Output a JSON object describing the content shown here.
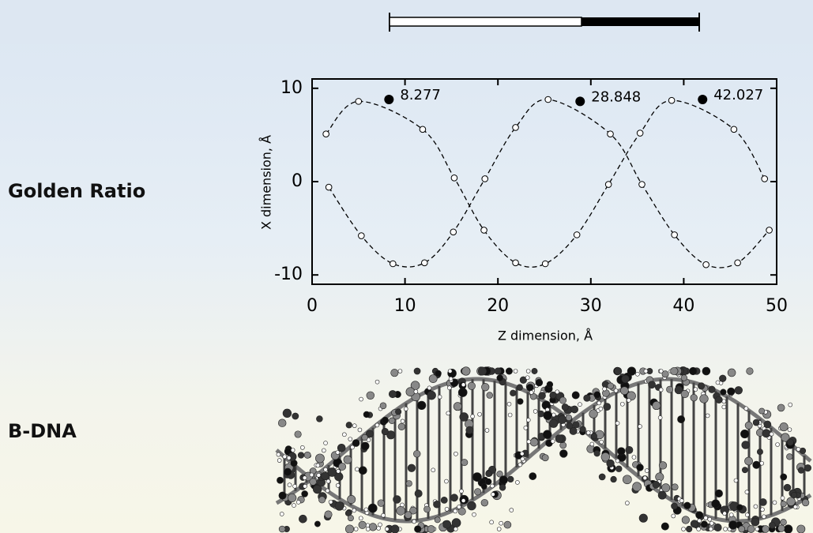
{
  "side_labels": [
    "Golden Ratio",
    "B-DNA"
  ],
  "chart_data": {
    "type": "line",
    "x_label": "Z dimension, Å",
    "y_label": "X dimension, Å",
    "xlim": [
      0,
      50
    ],
    "ylim": [
      -11,
      11
    ],
    "xticks": [
      0,
      10,
      20,
      30,
      40,
      50
    ],
    "yticks": [
      -10,
      0,
      10
    ],
    "series": [
      {
        "color": "#000000",
        "x": [
          1.5,
          5,
          11.9,
          15.3,
          18.5,
          21.9,
          25.1,
          28.5,
          31.9,
          35.3,
          38.7,
          45.4,
          48.7
        ],
        "values": [
          5.1,
          8.6,
          5.6,
          0.4,
          -5.2,
          -8.7,
          -8.8,
          -5.7,
          -0.3,
          5.2,
          8.7,
          5.6,
          0.3
        ]
      },
      {
        "color": "#000000",
        "x": [
          1.8,
          5.3,
          8.7,
          12.1,
          15.2,
          18.6,
          21.9,
          25.4,
          32.1,
          35.5,
          39,
          42.4,
          45.8,
          49.2
        ],
        "values": [
          -0.6,
          -5.8,
          -8.8,
          -8.7,
          -5.4,
          0.3,
          5.8,
          8.8,
          5.1,
          -0.3,
          -5.7,
          -8.9,
          -8.7,
          -5.2
        ]
      },
      {
        "type": "scatter",
        "color": "#000000",
        "x": [
          8.277,
          28.848,
          42.027
        ],
        "values": [
          8.8,
          8.6,
          8.8
        ]
      }
    ]
  }
}
